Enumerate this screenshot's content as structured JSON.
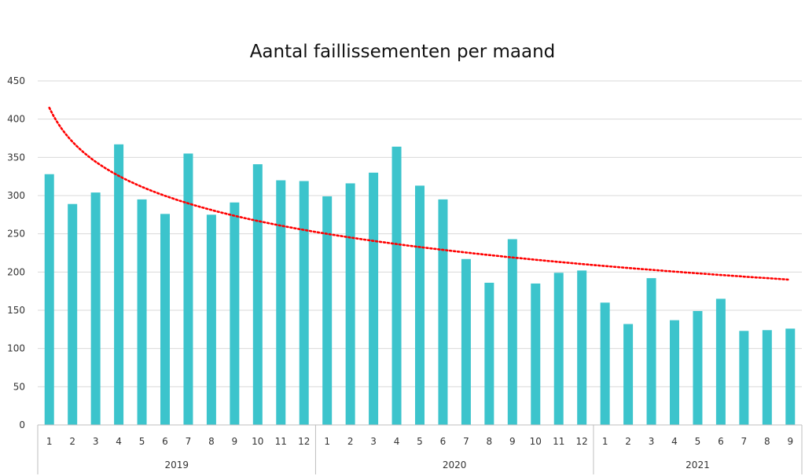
{
  "chart_data": {
    "type": "bar",
    "title": "Aantal faillissementen per maand",
    "xlabel": "",
    "ylabel": "",
    "ylim": [
      0,
      450
    ],
    "yticks": [
      0,
      50,
      100,
      150,
      200,
      250,
      300,
      350,
      400,
      450
    ],
    "grid": true,
    "bar_color": "#3cc4cc",
    "trendline": {
      "type": "logarithmic",
      "style": "dotted",
      "color": "#ff0000",
      "start": 415,
      "end": 190
    },
    "groups": [
      {
        "label": "2019",
        "categories": [
          "1",
          "2",
          "3",
          "4",
          "5",
          "6",
          "7",
          "8",
          "9",
          "10",
          "11",
          "12"
        ],
        "values": [
          328,
          289,
          304,
          367,
          295,
          276,
          355,
          275,
          291,
          341,
          320,
          319
        ]
      },
      {
        "label": "2020",
        "categories": [
          "1",
          "2",
          "3",
          "4",
          "5",
          "6",
          "7",
          "8",
          "9",
          "10",
          "11",
          "12"
        ],
        "values": [
          299,
          316,
          330,
          364,
          313,
          295,
          217,
          186,
          243,
          185,
          199,
          202
        ]
      },
      {
        "label": "2021",
        "categories": [
          "1",
          "2",
          "3",
          "4",
          "5",
          "6",
          "7",
          "8",
          "9"
        ],
        "values": [
          160,
          132,
          192,
          137,
          149,
          165,
          123,
          124,
          126
        ]
      }
    ]
  }
}
